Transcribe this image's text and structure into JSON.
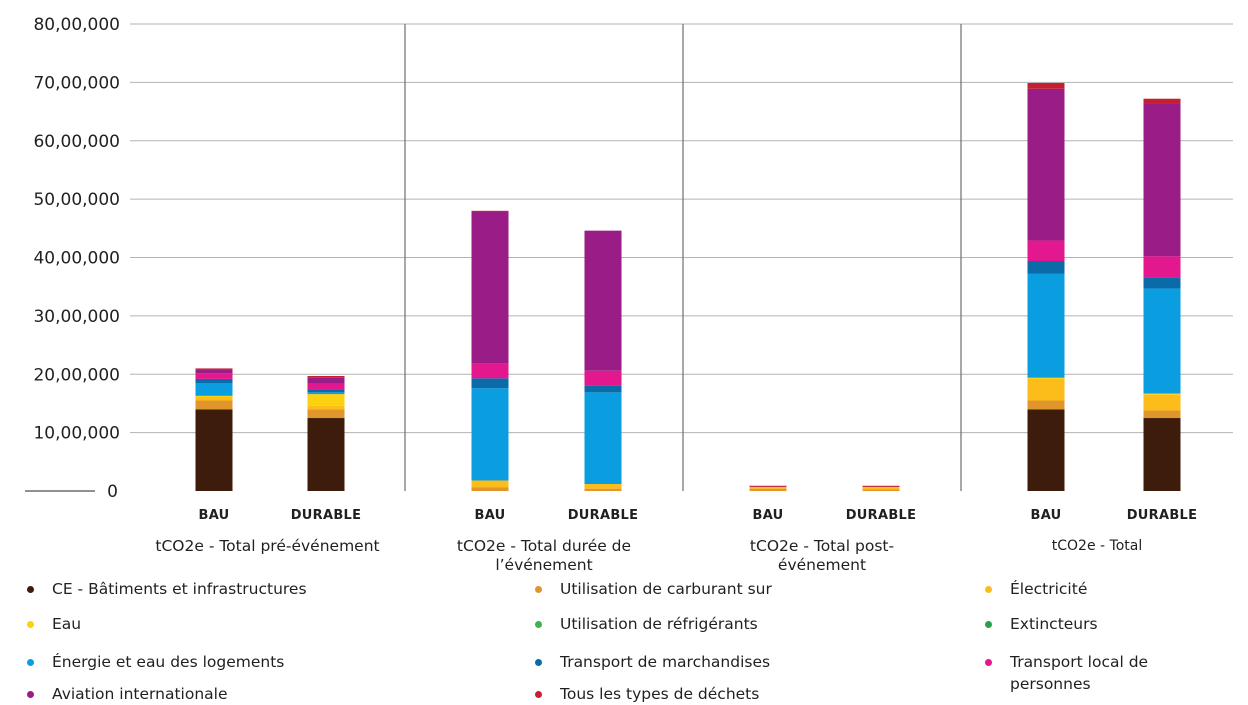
{
  "chart_data": {
    "type": "bar",
    "stacked": true,
    "ylim": [
      0,
      8000000
    ],
    "y_ticks": [
      "0",
      "10,00,000",
      "20,00,000",
      "30,00,000",
      "40,00,000",
      "50,00,000",
      "60,00,000",
      "70,00,000",
      "80,00,000"
    ],
    "y_tick_values": [
      0,
      1000000,
      2000000,
      3000000,
      4000000,
      5000000,
      6000000,
      7000000,
      8000000
    ],
    "grid": true,
    "legend_position": "bottom",
    "groups": [
      {
        "label": "tCO2e - Total pré-événement",
        "categories": [
          "BAU",
          "DURABLE"
        ]
      },
      {
        "label": "tCO2e - Total durée de l’événement",
        "categories": [
          "BAU",
          "DURABLE"
        ]
      },
      {
        "label": "tCO2e - Total post-événement",
        "categories": [
          "BAU",
          "DURABLE"
        ]
      },
      {
        "label": "tCO2e - Total",
        "categories": [
          "BAU",
          "DURABLE"
        ]
      }
    ],
    "series": [
      {
        "name": "CE - Bâtiments et infrastructures",
        "color": "#3d1c0b",
        "values": [
          [
            1400000,
            1250000
          ],
          [
            0,
            0
          ],
          [
            0,
            0
          ],
          [
            1400000,
            1250000
          ]
        ]
      },
      {
        "name": "Utilisation de carburant sur",
        "color": "#e0962a",
        "values": [
          [
            150000,
            150000
          ],
          [
            60000,
            40000
          ],
          [
            40000,
            30000
          ],
          [
            150000,
            130000
          ]
        ]
      },
      {
        "name": "Électricité",
        "color": "#fcbd1b",
        "values": [
          [
            60000,
            60000
          ],
          [
            120000,
            80000
          ],
          [
            30000,
            40000
          ],
          [
            370000,
            270000
          ]
        ]
      },
      {
        "name": "Eau",
        "color": "#fcd10f",
        "values": [
          [
            20000,
            200000
          ],
          [
            0,
            0
          ],
          [
            0,
            0
          ],
          [
            20000,
            20000
          ]
        ]
      },
      {
        "name": "Utilisation de réfrigérants",
        "color": "#3cb34b",
        "values": [
          [
            0,
            0
          ],
          [
            0,
            0
          ],
          [
            0,
            0
          ],
          [
            0,
            0
          ]
        ]
      },
      {
        "name": "Extincteurs",
        "color": "#2e9e47",
        "values": [
          [
            0,
            0
          ],
          [
            0,
            0
          ],
          [
            0,
            0
          ],
          [
            0,
            0
          ]
        ]
      },
      {
        "name": "Énergie et eau des logements",
        "color": "#0a9ee0",
        "values": [
          [
            220000,
            30000
          ],
          [
            1580000,
            1570000
          ],
          [
            0,
            0
          ],
          [
            1780000,
            1800000
          ]
        ]
      },
      {
        "name": "Transport de marchandises",
        "color": "#0b6aa8",
        "values": [
          [
            70000,
            50000
          ],
          [
            170000,
            120000
          ],
          [
            0,
            0
          ],
          [
            220000,
            180000
          ]
        ]
      },
      {
        "name": "Transport local de personnes",
        "color": "#e3178e",
        "values": [
          [
            100000,
            100000
          ],
          [
            250000,
            250000
          ],
          [
            0,
            0
          ],
          [
            350000,
            370000
          ]
        ]
      },
      {
        "name": "Aviation internationale",
        "color": "#9a1c86",
        "values": [
          [
            60000,
            100000
          ],
          [
            2600000,
            2400000
          ],
          [
            0,
            0
          ],
          [
            2600000,
            2610000
          ]
        ]
      },
      {
        "name": "Tous les types de déchets",
        "color": "#c42032",
        "values": [
          [
            20000,
            30000
          ],
          [
            20000,
            0
          ],
          [
            20000,
            20000
          ],
          [
            100000,
            90000
          ]
        ]
      }
    ]
  },
  "legend": {
    "items": [
      {
        "label": "CE - Bâtiments et infrastructures",
        "color": "#3d1c0b"
      },
      {
        "label": "Utilisation de carburant sur",
        "color": "#e0962a"
      },
      {
        "label": "Électricité",
        "color": "#fcbd1b"
      },
      {
        "label": "Eau",
        "color": "#fcd10f"
      },
      {
        "label": "Utilisation de réfrigérants",
        "color": "#3cb34b"
      },
      {
        "label": "Extincteurs",
        "color": "#2e9e47"
      },
      {
        "label": "Énergie et eau des logements",
        "color": "#0a9ee0"
      },
      {
        "label": "Transport de marchandises",
        "color": "#0b6aa8"
      },
      {
        "label": "Transport local de personnes",
        "color": "#e3178e"
      },
      {
        "label": "Aviation internationale",
        "color": "#9a1c86"
      },
      {
        "label": "Tous les types de déchets",
        "color": "#c42032"
      }
    ]
  }
}
